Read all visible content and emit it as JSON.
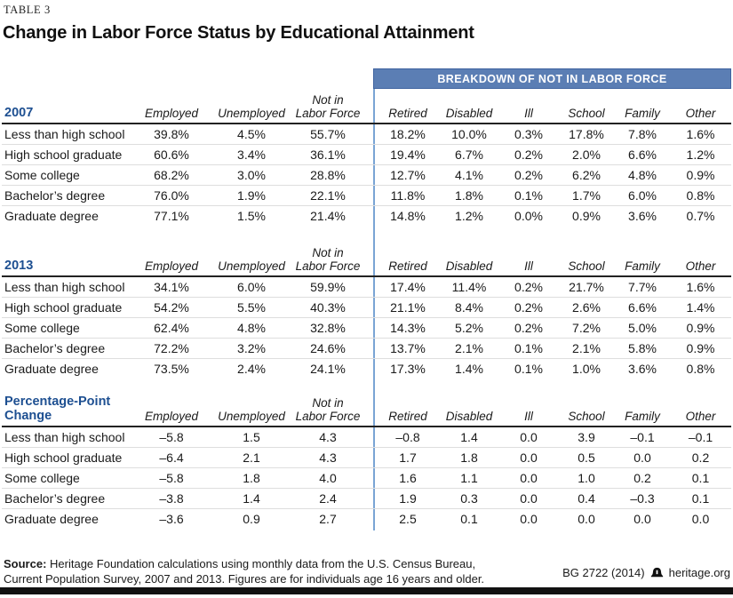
{
  "page": {
    "kicker": "TABLE 3"
  },
  "chart_data": {
    "type": "table",
    "title": "Change in Labor Force Status by Educational Attainment",
    "column_group": "BREAKDOWN OF NOT IN LABOR FORCE",
    "column_group_applies_to": [
      "Retired",
      "Disabled",
      "Ill",
      "School",
      "Family",
      "Other"
    ],
    "columns": [
      "Employed",
      "Unemployed",
      "Not in\nLabor Force",
      "Retired",
      "Disabled",
      "Ill",
      "School",
      "Family",
      "Other"
    ],
    "sections": [
      {
        "title": "2007",
        "rows": [
          {
            "label": "Less than high school",
            "values": [
              "39.8%",
              "4.5%",
              "55.7%",
              "18.2%",
              "10.0%",
              "0.3%",
              "17.8%",
              "7.8%",
              "1.6%"
            ]
          },
          {
            "label": "High school graduate",
            "values": [
              "60.6%",
              "3.4%",
              "36.1%",
              "19.4%",
              "6.7%",
              "0.2%",
              "2.0%",
              "6.6%",
              "1.2%"
            ]
          },
          {
            "label": "Some college",
            "values": [
              "68.2%",
              "3.0%",
              "28.8%",
              "12.7%",
              "4.1%",
              "0.2%",
              "6.2%",
              "4.8%",
              "0.9%"
            ]
          },
          {
            "label": "Bachelor’s degree",
            "values": [
              "76.0%",
              "1.9%",
              "22.1%",
              "11.8%",
              "1.8%",
              "0.1%",
              "1.7%",
              "6.0%",
              "0.8%"
            ]
          },
          {
            "label": "Graduate degree",
            "values": [
              "77.1%",
              "1.5%",
              "21.4%",
              "14.8%",
              "1.2%",
              "0.0%",
              "0.9%",
              "3.6%",
              "0.7%"
            ]
          }
        ]
      },
      {
        "title": "2013",
        "rows": [
          {
            "label": "Less than high school",
            "values": [
              "34.1%",
              "6.0%",
              "59.9%",
              "17.4%",
              "11.4%",
              "0.2%",
              "21.7%",
              "7.7%",
              "1.6%"
            ]
          },
          {
            "label": "High school graduate",
            "values": [
              "54.2%",
              "5.5%",
              "40.3%",
              "21.1%",
              "8.4%",
              "0.2%",
              "2.6%",
              "6.6%",
              "1.4%"
            ]
          },
          {
            "label": "Some college",
            "values": [
              "62.4%",
              "4.8%",
              "32.8%",
              "14.3%",
              "5.2%",
              "0.2%",
              "7.2%",
              "5.0%",
              "0.9%"
            ]
          },
          {
            "label": "Bachelor’s degree",
            "values": [
              "72.2%",
              "3.2%",
              "24.6%",
              "13.7%",
              "2.1%",
              "0.1%",
              "2.1%",
              "5.8%",
              "0.9%"
            ]
          },
          {
            "label": "Graduate degree",
            "values": [
              "73.5%",
              "2.4%",
              "24.1%",
              "17.3%",
              "1.4%",
              "0.1%",
              "1.0%",
              "3.6%",
              "0.8%"
            ]
          }
        ]
      },
      {
        "title": "Percentage-Point\nChange",
        "rows": [
          {
            "label": "Less than high school",
            "values": [
              "–5.8",
              "1.5",
              "4.3",
              "–0.8",
              "1.4",
              "0.0",
              "3.9",
              "–0.1",
              "–0.1"
            ]
          },
          {
            "label": "High school graduate",
            "values": [
              "–6.4",
              "2.1",
              "4.3",
              "1.7",
              "1.8",
              "0.0",
              "0.5",
              "0.0",
              "0.2"
            ]
          },
          {
            "label": "Some college",
            "values": [
              "–5.8",
              "1.8",
              "4.0",
              "1.6",
              "1.1",
              "0.0",
              "1.0",
              "0.2",
              "0.1"
            ]
          },
          {
            "label": "Bachelor’s degree",
            "values": [
              "–3.8",
              "1.4",
              "2.4",
              "1.9",
              "0.3",
              "0.0",
              "0.4",
              "–0.3",
              "0.1"
            ]
          },
          {
            "label": "Graduate degree",
            "values": [
              "–3.6",
              "0.9",
              "2.7",
              "2.5",
              "0.1",
              "0.0",
              "0.0",
              "0.0",
              "0.0"
            ]
          }
        ]
      }
    ]
  },
  "footer": {
    "source_prefix": "Source:",
    "source_text": " Heritage Foundation calculations using monthly data from the U.S. Census Bureau,\nCurrent Population Survey, 2007 and 2013. Figures are for individuals age 16 years and older.",
    "publication": "BG 2722 (2014)",
    "website": "heritage.org"
  },
  "colors": {
    "banner_bg": "#5b7eb4",
    "banner_border": "#3f63a0",
    "divider_blue": "#7aa4d4",
    "section_title_blue": "#1d4f91",
    "dark_rule": "#222222",
    "row_rule": "#dedede",
    "bottom_bar": "#111111"
  }
}
